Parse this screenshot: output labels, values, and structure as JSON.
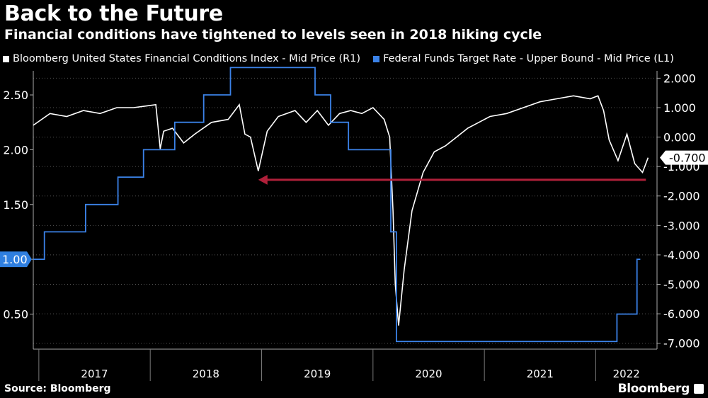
{
  "title": "Back to the Future",
  "subtitle": "Financial conditions have tightened to levels seen in 2018 hiking cycle",
  "source": "Source: Bloomberg",
  "brand": "Bloomberg",
  "chart_data": {
    "type": "line",
    "x_labels": [
      "2017",
      "2018",
      "2019",
      "2020",
      "2021",
      "2022"
    ],
    "left_axis": {
      "ticks": [
        "2.50",
        "2.00",
        "1.50",
        "1.00",
        "0.50"
      ],
      "ylim": [
        0.18,
        2.72
      ]
    },
    "right_axis": {
      "ticks": [
        "2.000",
        "1.000",
        "0.000",
        "-1.000",
        "-2.000",
        "-3.000",
        "-4.000",
        "-5.000",
        "-6.000",
        "-7.000"
      ],
      "ylim": [
        -7.2,
        2.25
      ]
    },
    "callouts": {
      "left_last": "1.00",
      "right_last": "-0.700"
    },
    "annotation": "arrow pointing from 2022 current level back to late-2018 trough",
    "series": [
      {
        "name": "Bloomberg United States Financial Conditions Index - Mid Price (R1)",
        "axis": "right",
        "color": "#ffffff",
        "points": [
          [
            2016.95,
            0.4
          ],
          [
            2017.1,
            0.8
          ],
          [
            2017.25,
            0.7
          ],
          [
            2017.4,
            0.9
          ],
          [
            2017.55,
            0.8
          ],
          [
            2017.7,
            1.0
          ],
          [
            2017.85,
            1.0
          ],
          [
            2017.95,
            1.05
          ],
          [
            2018.05,
            1.1
          ],
          [
            2018.09,
            -0.4
          ],
          [
            2018.12,
            0.2
          ],
          [
            2018.2,
            0.3
          ],
          [
            2018.3,
            -0.2
          ],
          [
            2018.4,
            0.1
          ],
          [
            2018.55,
            0.5
          ],
          [
            2018.7,
            0.6
          ],
          [
            2018.8,
            1.1
          ],
          [
            2018.85,
            0.1
          ],
          [
            2018.9,
            0.0
          ],
          [
            2018.97,
            -1.15
          ],
          [
            2019.05,
            0.2
          ],
          [
            2019.15,
            0.7
          ],
          [
            2019.3,
            0.9
          ],
          [
            2019.4,
            0.5
          ],
          [
            2019.5,
            0.9
          ],
          [
            2019.6,
            0.4
          ],
          [
            2019.7,
            0.8
          ],
          [
            2019.8,
            0.9
          ],
          [
            2019.9,
            0.8
          ],
          [
            2020.0,
            1.0
          ],
          [
            2020.1,
            0.6
          ],
          [
            2020.15,
            0.0
          ],
          [
            2020.18,
            -2.5
          ],
          [
            2020.2,
            -5.0
          ],
          [
            2020.23,
            -6.4
          ],
          [
            2020.28,
            -4.5
          ],
          [
            2020.35,
            -2.5
          ],
          [
            2020.45,
            -1.2
          ],
          [
            2020.55,
            -0.5
          ],
          [
            2020.65,
            -0.3
          ],
          [
            2020.75,
            0.0
          ],
          [
            2020.85,
            0.3
          ],
          [
            2020.95,
            0.5
          ],
          [
            2021.05,
            0.7
          ],
          [
            2021.2,
            0.8
          ],
          [
            2021.35,
            1.0
          ],
          [
            2021.5,
            1.2
          ],
          [
            2021.65,
            1.3
          ],
          [
            2021.8,
            1.4
          ],
          [
            2021.95,
            1.3
          ],
          [
            2022.02,
            1.4
          ],
          [
            2022.07,
            0.9
          ],
          [
            2022.12,
            -0.1
          ],
          [
            2022.2,
            -0.8
          ],
          [
            2022.28,
            0.1
          ],
          [
            2022.35,
            -0.9
          ],
          [
            2022.42,
            -1.2
          ],
          [
            2022.47,
            -0.7
          ]
        ]
      },
      {
        "name": "Federal Funds Target Rate - Upper Bound - Mid Price (L1)",
        "axis": "left",
        "color": "#3b82e8",
        "points": [
          [
            2016.95,
            1.0
          ],
          [
            2017.05,
            1.0
          ],
          [
            2017.05,
            1.25
          ],
          [
            2017.42,
            1.25
          ],
          [
            2017.42,
            1.5
          ],
          [
            2017.71,
            1.5
          ],
          [
            2017.71,
            1.75
          ],
          [
            2017.94,
            1.75
          ],
          [
            2017.94,
            2.0
          ],
          [
            2018.22,
            2.0
          ],
          [
            2018.22,
            2.25
          ],
          [
            2018.48,
            2.25
          ],
          [
            2018.48,
            2.5
          ],
          [
            2018.72,
            2.5
          ],
          [
            2018.72,
            2.75
          ],
          [
            2019.48,
            2.75
          ],
          [
            2019.48,
            2.5
          ],
          [
            2019.62,
            2.5
          ],
          [
            2019.62,
            2.25
          ],
          [
            2019.78,
            2.25
          ],
          [
            2019.78,
            2.0
          ],
          [
            2020.16,
            2.0
          ],
          [
            2020.16,
            1.25
          ],
          [
            2020.21,
            1.25
          ],
          [
            2020.21,
            0.25
          ],
          [
            2022.19,
            0.25
          ],
          [
            2022.19,
            0.5
          ],
          [
            2022.37,
            0.5
          ],
          [
            2022.37,
            1.0
          ],
          [
            2022.4,
            1.0
          ]
        ]
      }
    ]
  }
}
